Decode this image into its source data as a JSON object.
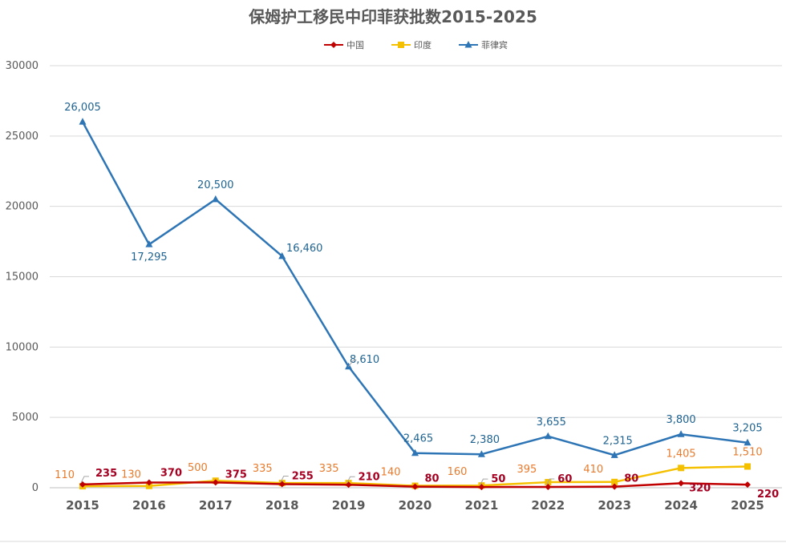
{
  "chart_data": {
    "type": "line",
    "title": "保姆护工移民中印菲获批数2015-2025",
    "xlabel": "",
    "ylabel": "",
    "categories": [
      "2015",
      "2016",
      "2017",
      "2018",
      "2019",
      "2020",
      "2021",
      "2022",
      "2023",
      "2024",
      "2025"
    ],
    "ylim": [
      0,
      30000
    ],
    "yticks": [
      0,
      5000,
      10000,
      15000,
      20000,
      25000,
      30000
    ],
    "grid": true,
    "legend_position": "top-center",
    "series": [
      {
        "name": "中国",
        "color": "#c00000",
        "label_color": "#a50021",
        "marker": "diamond",
        "values": [
          235,
          370,
          375,
          255,
          210,
          80,
          50,
          60,
          80,
          320,
          220
        ],
        "labels": [
          "235",
          "370",
          "375",
          "255",
          "210",
          "80",
          "50",
          "60",
          "80",
          "320",
          "220"
        ]
      },
      {
        "name": "印度",
        "color": "#f5c000",
        "label_color": "#e87b2e",
        "marker": "square",
        "values": [
          110,
          130,
          500,
          335,
          335,
          140,
          160,
          395,
          410,
          1405,
          1510
        ],
        "labels": [
          "110",
          "130",
          "500",
          "335",
          "335",
          "140",
          "160",
          "395",
          "410",
          "1,405",
          "1,510"
        ]
      },
      {
        "name": "菲律宾",
        "color": "#2e75b6",
        "label_color": "#1f6391",
        "marker": "triangle",
        "values": [
          26005,
          17295,
          20500,
          16460,
          8610,
          2465,
          2380,
          3655,
          2315,
          3800,
          3205
        ],
        "labels": [
          "26,005",
          "17,295",
          "20,500",
          "16,460",
          "8,610",
          "2,465",
          "2,380",
          "3,655",
          "2,315",
          "3,800",
          "3,205"
        ]
      }
    ]
  }
}
